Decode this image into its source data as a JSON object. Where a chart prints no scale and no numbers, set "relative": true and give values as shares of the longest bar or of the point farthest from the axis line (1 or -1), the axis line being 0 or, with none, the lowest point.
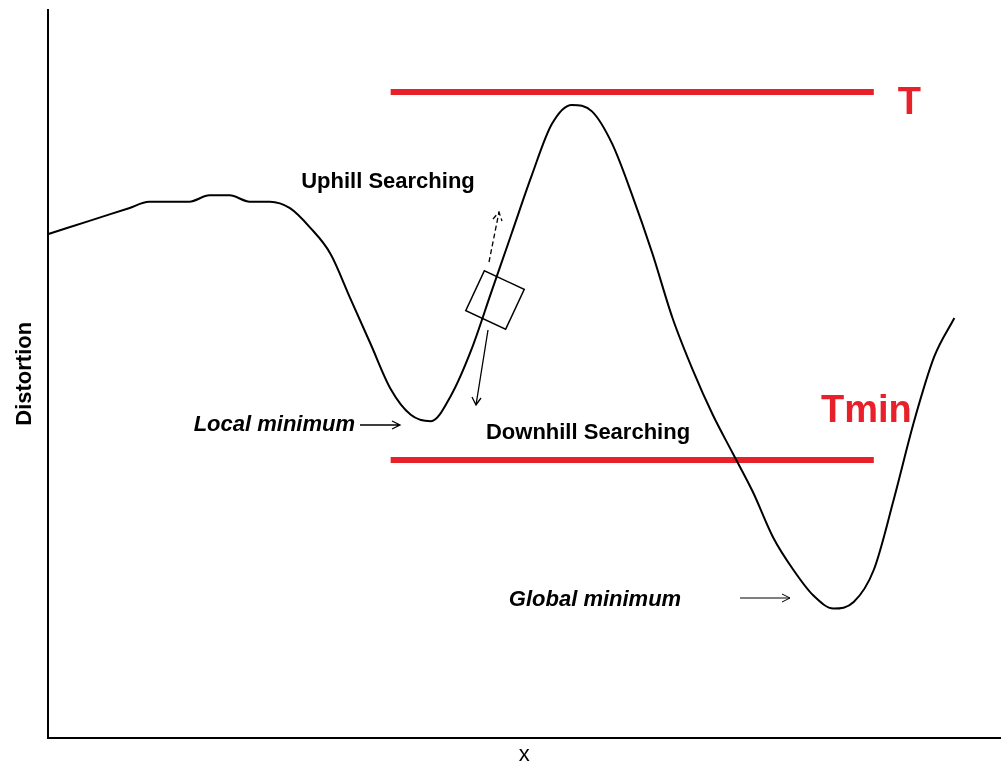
{
  "chart_data": {
    "type": "line",
    "relative": true,
    "xlabel": "x",
    "ylabel": "Distortion",
    "categories": [
      null,
      null,
      null,
      null,
      null,
      null,
      null,
      null,
      null,
      null,
      null,
      null,
      null,
      null,
      null,
      null,
      null,
      null,
      null,
      null,
      null,
      null,
      null,
      null,
      null,
      null,
      null,
      null,
      null,
      null,
      null,
      null,
      null,
      null,
      null,
      null,
      null,
      null,
      null,
      null,
      null,
      null,
      null,
      null,
      null,
      null
    ],
    "series": [
      {
        "color": "#000000",
        "values": [
          0.78,
          0.79,
          0.8,
          0.81,
          0.82,
          0.83,
          0.83,
          0.83,
          0.84,
          0.84,
          0.83,
          0.83,
          0.82,
          0.79,
          0.75,
          0.68,
          0.61,
          0.54,
          0.5,
          0.49,
          0.53,
          0.6,
          0.69,
          0.78,
          0.87,
          0.95,
          0.98,
          0.97,
          0.92,
          0.84,
          0.75,
          0.65,
          0.57,
          0.5,
          0.44,
          0.38,
          0.31,
          0.26,
          0.22,
          0.2,
          0.21,
          0.26,
          0.37,
          0.49,
          0.59,
          0.65
        ]
      },
      {
        "name": "T",
        "color": "#e8202a",
        "values": [
          null,
          null,
          null,
          null,
          null,
          null,
          null,
          null,
          null,
          null,
          null,
          null,
          null,
          null,
          null,
          null,
          null,
          1,
          1,
          1,
          1,
          1,
          1,
          1,
          1,
          1,
          1,
          1,
          1,
          1,
          1,
          1,
          1,
          1,
          1,
          1,
          1,
          1,
          1,
          1,
          1,
          1,
          null,
          null,
          null,
          null
        ]
      },
      {
        "name": "Tmin",
        "color": "#e8202a",
        "values": [
          null,
          null,
          null,
          null,
          null,
          null,
          null,
          null,
          null,
          null,
          null,
          null,
          null,
          null,
          null,
          null,
          null,
          0.43,
          0.43,
          0.43,
          0.43,
          0.43,
          0.43,
          0.43,
          0.43,
          0.43,
          0.43,
          0.43,
          0.43,
          0.43,
          0.43,
          0.43,
          0.43,
          0.43,
          0.43,
          0.43,
          0.43,
          0.43,
          0.43,
          0.43,
          0.43,
          0.43,
          null,
          null,
          null,
          null
        ]
      }
    ],
    "annotations": [
      "Uphill Searching",
      "Downhill Searching",
      "Local minimum",
      "Global minimum"
    ],
    "grid": false,
    "legend": false,
    "marker": "none",
    "line_style": "solid"
  }
}
